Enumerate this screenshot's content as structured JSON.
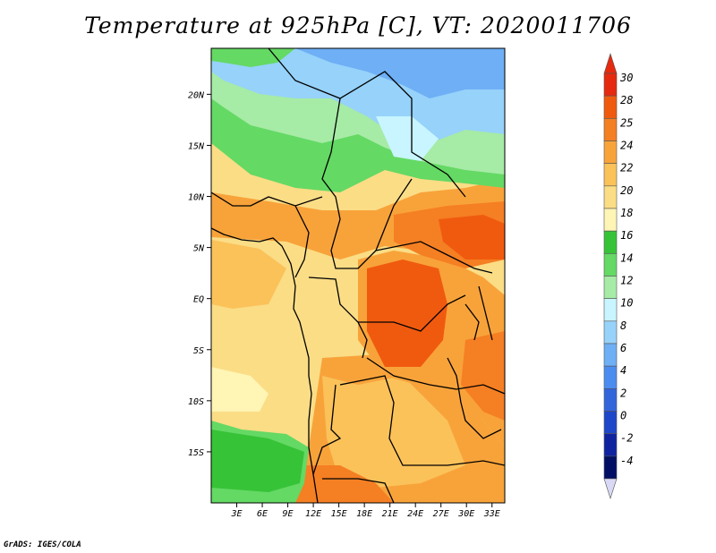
{
  "title": "Temperature at 925hPa [C], VT: 2020011706",
  "footer": "GrADS: IGES/COLA",
  "map": {
    "lon_range": [
      0,
      34.5
    ],
    "lat_range": [
      -20,
      24.5
    ],
    "lat_ticks": [
      {
        "value": 20,
        "label": "20N"
      },
      {
        "value": 15,
        "label": "15N"
      },
      {
        "value": 10,
        "label": "10N"
      },
      {
        "value": 5,
        "label": "5N"
      },
      {
        "value": 0,
        "label": "EQ"
      },
      {
        "value": -5,
        "label": "5S"
      },
      {
        "value": -10,
        "label": "10S"
      },
      {
        "value": -15,
        "label": "15S"
      }
    ],
    "lon_ticks": [
      {
        "value": 3,
        "label": "3E"
      },
      {
        "value": 6,
        "label": "6E"
      },
      {
        "value": 9,
        "label": "9E"
      },
      {
        "value": 12,
        "label": "12E"
      },
      {
        "value": 15,
        "label": "15E"
      },
      {
        "value": 18,
        "label": "18E"
      },
      {
        "value": 21,
        "label": "21E"
      },
      {
        "value": 24,
        "label": "24E"
      },
      {
        "value": 27,
        "label": "27E"
      },
      {
        "value": 30,
        "label": "30E"
      },
      {
        "value": 33,
        "label": "33E"
      }
    ]
  },
  "colorbar": {
    "levels": [
      "30",
      "28",
      "25",
      "24",
      "22",
      "20",
      "18",
      "16",
      "14",
      "12",
      "10",
      "8",
      "6",
      "4",
      "2",
      "0",
      "-2",
      "-4"
    ],
    "colors": [
      "#e62a0f",
      "#f05a0f",
      "#f57f23",
      "#f8a33a",
      "#fbc25a",
      "#fbdd86",
      "#fff5b4",
      "#37c337",
      "#64d964",
      "#a6eba6",
      "#c8f5ff",
      "#96d2fa",
      "#6eaff5",
      "#4b8cf0",
      "#3264dc",
      "#1e46c8",
      "#0f23a0",
      "#000f64"
    ],
    "top_color": "#e62a0f",
    "bottom_color": "#d9d9f5"
  }
}
